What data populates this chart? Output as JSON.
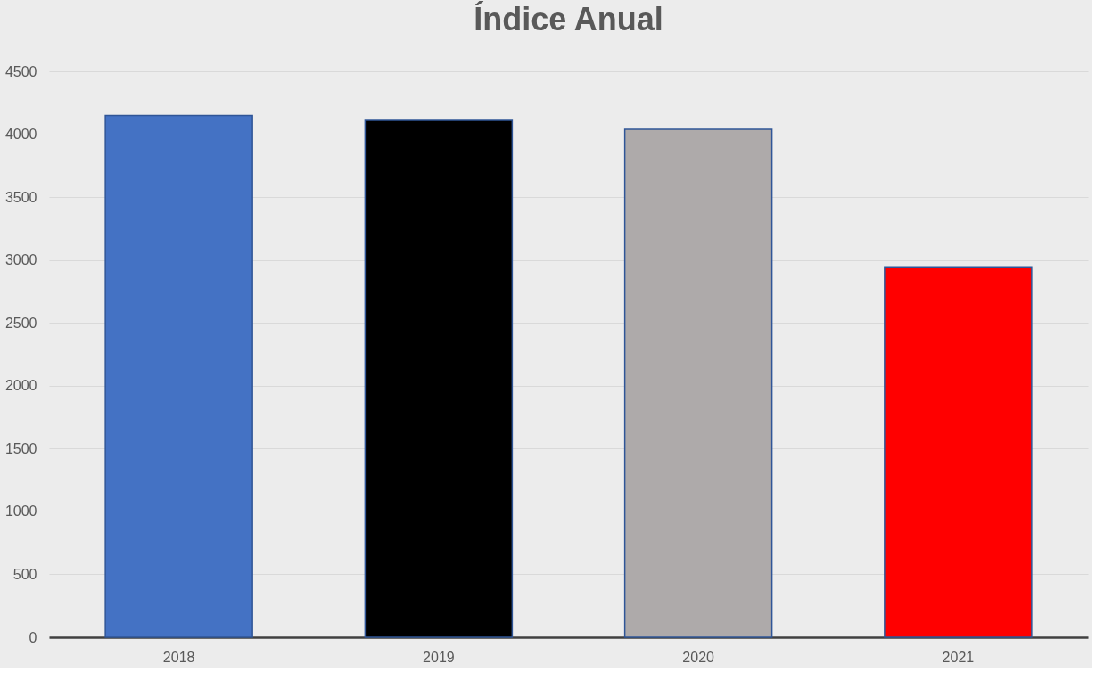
{
  "chart_data": {
    "type": "bar",
    "title": "Índice Anual",
    "categories": [
      "2018",
      "2019",
      "2020",
      "2021"
    ],
    "values": [
      4150,
      4110,
      4040,
      2940
    ],
    "colors": [
      "#4472c4",
      "#000000",
      "#aeaaaa",
      "#ff0000"
    ],
    "ylim": [
      0,
      4500
    ],
    "yticks": [
      0,
      500,
      1000,
      1500,
      2000,
      2500,
      3000,
      3500,
      4000,
      4500
    ],
    "grid": "y",
    "legend": false
  }
}
